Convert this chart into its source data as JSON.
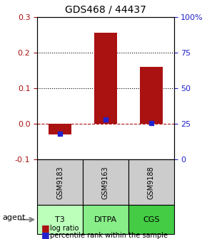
{
  "title": "GDS468 / 44437",
  "samples": [
    "GSM9183",
    "GSM9163",
    "GSM9188"
  ],
  "agents": [
    "T3",
    "DITPA",
    "CGS"
  ],
  "log_ratios": [
    -0.03,
    0.255,
    0.16
  ],
  "percentile_ranks": [
    0.18,
    0.28,
    0.255
  ],
  "bar_color": "#aa1111",
  "dot_color": "#2222cc",
  "ylim_left": [
    -0.1,
    0.3
  ],
  "ylim_right": [
    0,
    100
  ],
  "yticks_left": [
    -0.1,
    0.0,
    0.1,
    0.2,
    0.3
  ],
  "yticks_right": [
    0,
    25,
    50,
    75,
    100
  ],
  "ytick_labels_right": [
    "0",
    "25",
    "50",
    "75",
    "100%"
  ],
  "hline_y": 0.0,
  "dotted_lines": [
    0.1,
    0.2
  ],
  "sample_box_color": "#cccccc",
  "agent_colors": [
    "#aaffaa",
    "#88ee88",
    "#44cc44"
  ],
  "agent_box_color_t3": "#bbffbb",
  "agent_box_color_ditpa": "#88ee88",
  "agent_box_color_cgs": "#44cc44",
  "legend_log_color": "#aa1111",
  "legend_dot_color": "#2222cc",
  "bar_width": 0.5,
  "x_positions": [
    1,
    2,
    3
  ]
}
